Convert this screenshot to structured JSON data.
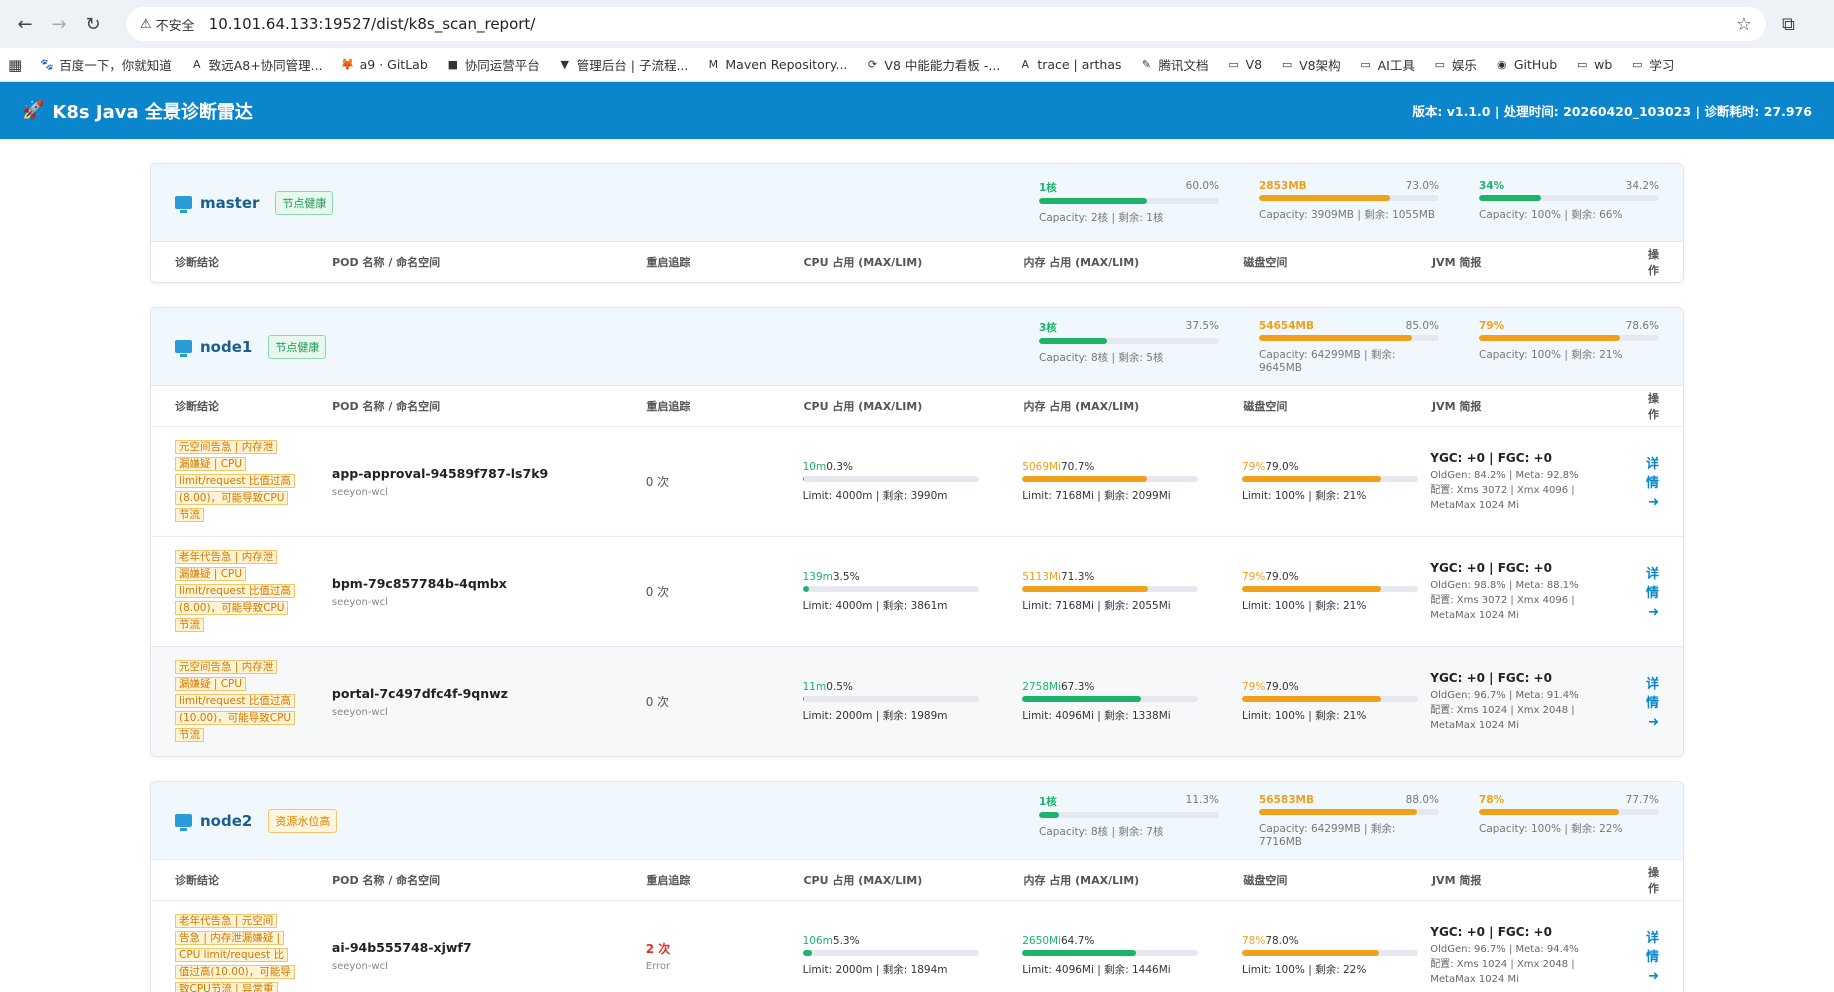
{
  "browser": {
    "security_label": "不安全",
    "url": "10.101.64.133:19527/dist/k8s_scan_report/",
    "bookmarks": [
      "百度一下，你就知道",
      "致远A8+协同管理...",
      "a9 · GitLab",
      "协同运营平台",
      "管理后台 | 子流程...",
      "Maven Repository...",
      "V8 中能能力看板 -...",
      "trace | arthas",
      "腾讯文档",
      "V8",
      "V8架构",
      "AI工具",
      "娱乐",
      "GitHub",
      "wb",
      "学习"
    ]
  },
  "app": {
    "title": "K8s Java 全景诊断雷达",
    "meta": "版本: v1.1.0 | 处理时间: 20260420_103023 | 诊断耗时: 27.976"
  },
  "columns": [
    "诊断结论",
    "POD 名称 / 命名空间",
    "重启追踪",
    "CPU 占用 (MAX/LIM)",
    "内存 占用 (MAX/LIM)",
    "磁盘空间",
    "JVM 简报",
    "操作"
  ],
  "detail_label": "详情 ➜",
  "nodes": [
    {
      "name": "master",
      "badge": "节点健康",
      "badge_type": "ok",
      "meters": [
        {
          "val": "1核",
          "pct": "60.0%",
          "fill": 0.6,
          "color": "green",
          "cap": "Capacity: 2核 | 剩余: 1核"
        },
        {
          "val": "2853MB",
          "pct": "73.0%",
          "fill": 0.73,
          "color": "orange",
          "cap": "Capacity: 3909MB | 剩余: 1055MB"
        },
        {
          "val": "34%",
          "pct": "34.2%",
          "fill": 0.342,
          "color": "green",
          "cap": "Capacity: 100% | 剩余: 66%"
        }
      ],
      "pods": []
    },
    {
      "name": "node1",
      "badge": "节点健康",
      "badge_type": "ok",
      "meters": [
        {
          "val": "3核",
          "pct": "37.5%",
          "fill": 0.375,
          "color": "green",
          "cap": "Capacity: 8核 | 剩余: 5核"
        },
        {
          "val": "54654MB",
          "pct": "85.0%",
          "fill": 0.85,
          "color": "orange",
          "cap": "Capacity: 64299MB | 剩余: 9645MB"
        },
        {
          "val": "79%",
          "pct": "78.6%",
          "fill": 0.786,
          "color": "orange",
          "cap": "Capacity: 100% | 剩余: 21%"
        }
      ],
      "pods": [
        {
          "diag": [
            "元空间告急 | 内存泄",
            "漏嫌疑 | CPU",
            "limit/request 比值过高",
            "(8.00)，可能导致CPU",
            "节流"
          ],
          "name": "app-approval-94589f787-ls7k9",
          "ns": "seeyon-wcl",
          "restart": "0 次",
          "restart_sub": "",
          "restart_bad": false,
          "cpu": {
            "val": "10m",
            "pct": "0.3%",
            "fill": 0.003,
            "color": "green",
            "cap": "Limit: 4000m | 剩余: 3990m"
          },
          "mem": {
            "val": "5069Mi",
            "pct": "70.7%",
            "fill": 0.707,
            "color": "orange",
            "cap": "Limit: 7168Mi | 剩余: 2099Mi"
          },
          "disk": {
            "val": "79%",
            "pct": "79.0%",
            "fill": 0.79,
            "color": "orange",
            "cap": "Limit: 100% | 剩余: 21%"
          },
          "jvm": {
            "gc": "YGC: +0 | FGC: +0",
            "old": "OldGen: 84.2% | Meta: 92.8%",
            "cfg1": "配置: Xms 3072 | Xmx 4096 |",
            "cfg2": "MetaMax 1024 Mi"
          },
          "alt": false
        },
        {
          "diag": [
            "老年代告急 | 内存泄",
            "漏嫌疑 | CPU",
            "limit/request 比值过高",
            "(8.00)，可能导致CPU",
            "节流"
          ],
          "name": "bpm-79c857784b-4qmbx",
          "ns": "seeyon-wcl",
          "restart": "0 次",
          "restart_sub": "",
          "restart_bad": false,
          "cpu": {
            "val": "139m",
            "pct": "3.5%",
            "fill": 0.035,
            "color": "green",
            "cap": "Limit: 4000m | 剩余: 3861m"
          },
          "mem": {
            "val": "5113Mi",
            "pct": "71.3%",
            "fill": 0.713,
            "color": "orange",
            "cap": "Limit: 7168Mi | 剩余: 2055Mi"
          },
          "disk": {
            "val": "79%",
            "pct": "79.0%",
            "fill": 0.79,
            "color": "orange",
            "cap": "Limit: 100% | 剩余: 21%"
          },
          "jvm": {
            "gc": "YGC: +0 | FGC: +0",
            "old": "OldGen: 98.8% | Meta: 88.1%",
            "cfg1": "配置: Xms 3072 | Xmx 4096 |",
            "cfg2": "MetaMax 1024 Mi"
          },
          "alt": false
        },
        {
          "diag": [
            "元空间告急 | 内存泄",
            "漏嫌疑 | CPU",
            "limit/request 比值过高",
            "(10.00)，可能导致CPU",
            "节流"
          ],
          "name": "portal-7c497dfc4f-9qnwz",
          "ns": "seeyon-wcl",
          "restart": "0 次",
          "restart_sub": "",
          "restart_bad": false,
          "cpu": {
            "val": "11m",
            "pct": "0.5%",
            "fill": 0.005,
            "color": "green",
            "cap": "Limit: 2000m | 剩余: 1989m"
          },
          "mem": {
            "val": "2758Mi",
            "pct": "67.3%",
            "fill": 0.673,
            "color": "green",
            "cap": "Limit: 4096Mi | 剩余: 1338Mi"
          },
          "disk": {
            "val": "79%",
            "pct": "79.0%",
            "fill": 0.79,
            "color": "orange",
            "cap": "Limit: 100% | 剩余: 21%"
          },
          "jvm": {
            "gc": "YGC: +0 | FGC: +0",
            "old": "OldGen: 96.7% | Meta: 91.4%",
            "cfg1": "配置: Xms 1024 | Xmx 2048 |",
            "cfg2": "MetaMax 1024 Mi"
          },
          "alt": true
        }
      ]
    },
    {
      "name": "node2",
      "badge": "资源水位高",
      "badge_type": "warn",
      "meters": [
        {
          "val": "1核",
          "pct": "11.3%",
          "fill": 0.113,
          "color": "green",
          "cap": "Capacity: 8核 | 剩余: 7核"
        },
        {
          "val": "56583MB",
          "pct": "88.0%",
          "fill": 0.88,
          "color": "orange",
          "cap": "Capacity: 64299MB | 剩余: 7716MB"
        },
        {
          "val": "78%",
          "pct": "77.7%",
          "fill": 0.777,
          "color": "orange",
          "cap": "Capacity: 100% | 剩余: 22%"
        }
      ],
      "pods": [
        {
          "diag": [
            "老年代告急 | 元空间",
            "告急 | 内存泄漏嫌疑 |",
            "CPU limit/request 比",
            "值过高(10.00)，可能导",
            "致CPU节流 | 异常重"
          ],
          "name": "ai-94b555748-xjwf7",
          "ns": "seeyon-wcl",
          "restart": "2 次",
          "restart_sub": "Error",
          "restart_bad": true,
          "cpu": {
            "val": "106m",
            "pct": "5.3%",
            "fill": 0.053,
            "color": "green",
            "cap": "Limit: 2000m | 剩余: 1894m"
          },
          "mem": {
            "val": "2650Mi",
            "pct": "64.7%",
            "fill": 0.647,
            "color": "green",
            "cap": "Limit: 4096Mi | 剩余: 1446Mi"
          },
          "disk": {
            "val": "78%",
            "pct": "78.0%",
            "fill": 0.78,
            "color": "orange",
            "cap": "Limit: 100% | 剩余: 22%"
          },
          "jvm": {
            "gc": "YGC: +0 | FGC: +0",
            "old": "OldGen: 96.7% | Meta: 94.4%",
            "cfg1": "配置: Xms 1024 | Xmx 2048 |",
            "cfg2": "MetaMax 1024 Mi"
          },
          "alt": false
        }
      ]
    }
  ]
}
